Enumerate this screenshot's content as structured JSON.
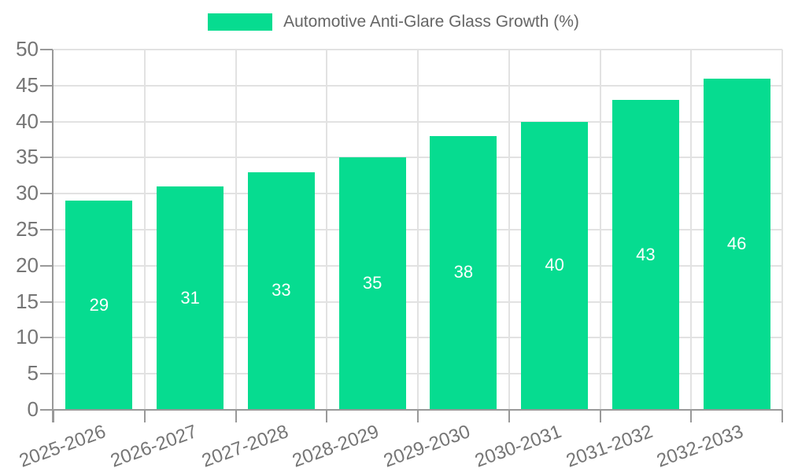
{
  "colors": {
    "bar": "#06DC90",
    "grid_line": "#E2E2E2",
    "axis_line": "#999999",
    "tick_mark": "#999999",
    "tick_text": "#757575",
    "legend_text": "#666666",
    "bar_value_text": "#FFFFFF",
    "background": "#FFFFFF"
  },
  "legend": {
    "label": "Automotive Anti-Glare Glass Growth (%)"
  },
  "chart_data": {
    "type": "bar",
    "title": "Automotive Anti-Glare Glass Growth (%)",
    "categories": [
      "2025-2026",
      "2026-2027",
      "2027-2028",
      "2028-2029",
      "2029-2030",
      "2030-2031",
      "2031-2032",
      "2032-2033"
    ],
    "values": [
      29,
      31,
      33,
      35,
      38,
      40,
      43,
      46
    ],
    "xlabel": "",
    "ylabel": "",
    "ylim": [
      0,
      50
    ],
    "ytick_step": 5,
    "ytick_labels": [
      "0",
      "5",
      "10",
      "15",
      "20",
      "25",
      "30",
      "35",
      "40",
      "45",
      "50"
    ],
    "grid": true,
    "legend_position": "top-center",
    "bar_value_labels": true,
    "x_label_rotation_deg": -20
  }
}
